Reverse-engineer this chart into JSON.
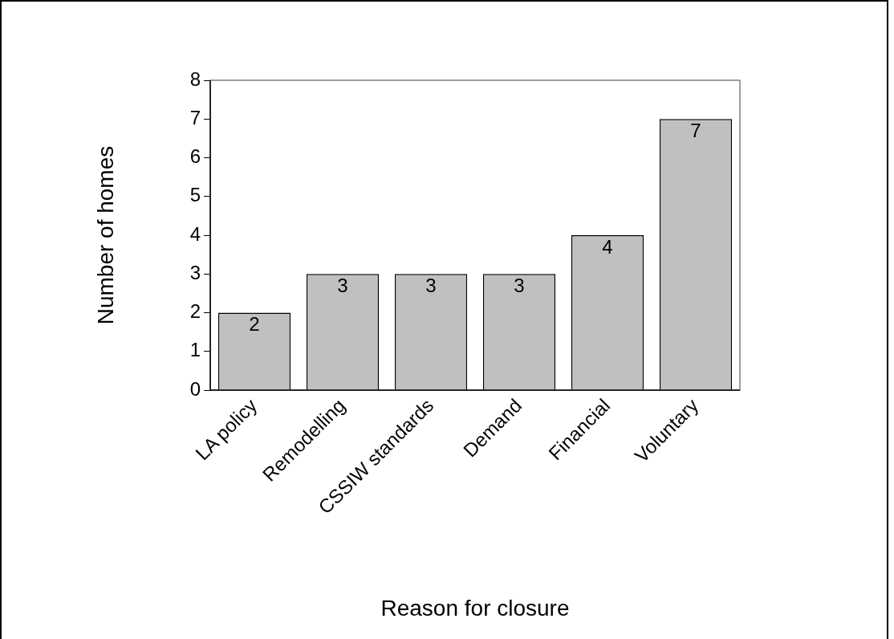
{
  "chart_data": {
    "type": "bar",
    "xlabel": "Reason for closure",
    "ylabel": "Number of homes",
    "categories": [
      "LA policy",
      "Remodelling",
      "CSSIW standards",
      "Demand",
      "Financial",
      "Voluntary"
    ],
    "values": [
      2,
      3,
      3,
      3,
      4,
      7
    ],
    "color": "#c0c0c0",
    "ylim": [
      0,
      8
    ],
    "yticks": [
      0,
      1,
      2,
      3,
      4,
      5,
      6,
      7,
      8
    ],
    "grid": false,
    "legend": false,
    "data_labels": true
  }
}
